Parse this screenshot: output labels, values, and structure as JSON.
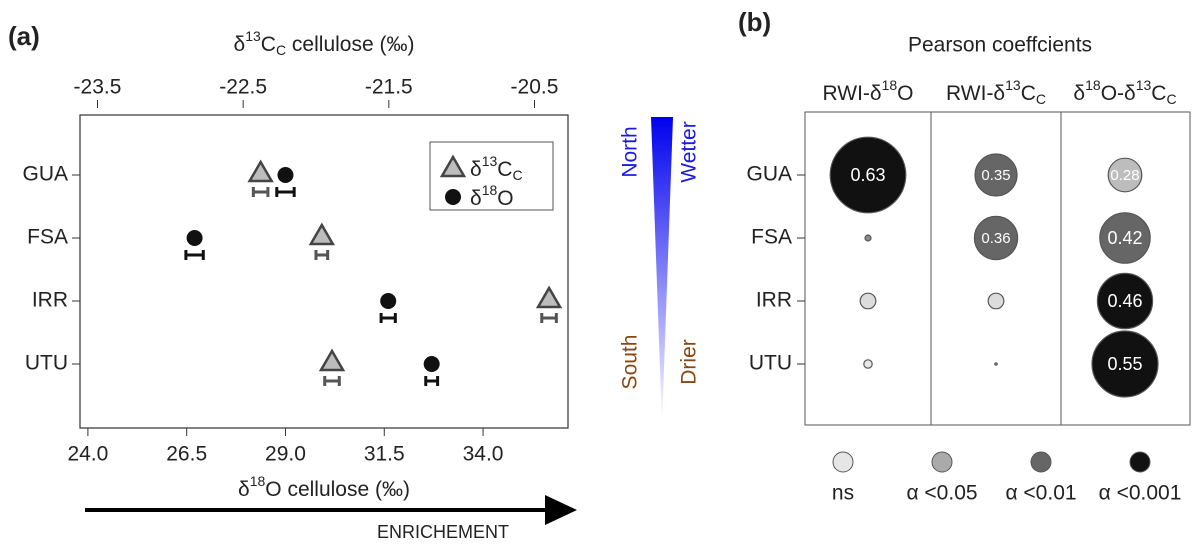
{
  "chart_data": [
    {
      "type": "dot",
      "panel_label": "(a)",
      "x2_label": [
        "δ",
        "13",
        "C",
        "C",
        " cellulose (‰)"
      ],
      "x_label": [
        "δ",
        "18",
        "O cellulose (‰)"
      ],
      "categories": [
        "GUA",
        "FSA",
        "IRR",
        "UTU"
      ],
      "series": [
        {
          "name": [
            "δ",
            "13",
            "C",
            "C"
          ],
          "marker": "triangle",
          "color": "#bdbdbd",
          "axis": "x2",
          "values": [
            -22.38,
            -21.96,
            -20.4,
            -21.89
          ],
          "errors": [
            0.05,
            0.04,
            0.05,
            0.05
          ]
        },
        {
          "name": [
            "δ",
            "18",
            "O"
          ],
          "marker": "circle",
          "color": "#111111",
          "axis": "x",
          "values": [
            29.0,
            26.7,
            31.6,
            32.7
          ],
          "errors": [
            0.22,
            0.22,
            0.18,
            0.15
          ]
        }
      ],
      "xlim": [
        23.8,
        36.15
      ],
      "xticks": [
        {
          "value": 24,
          "label": "24.0"
        },
        26.5,
        {
          "value": 29,
          "label": "29.0"
        },
        31.5,
        {
          "value": 34,
          "label": "34.0"
        }
      ],
      "x2lim": [
        -23.62,
        -20.27
      ],
      "x2ticks": [
        -23.5,
        -22.5,
        -21.5,
        -20.5
      ],
      "annotations": {
        "north": "North",
        "south": "South",
        "wetter": "Wetter",
        "drier": "Drier",
        "arrow": "ENRICHEMENT"
      }
    },
    {
      "type": "bubble",
      "panel_label": "(b)",
      "title": "Pearson coeffcients",
      "categories": [
        "GUA",
        "FSA",
        "IRR",
        "UTU"
      ],
      "series": [
        {
          "name": [
            "RWI-δ",
            "18",
            "O"
          ],
          "values": [
            0.63,
            0.05,
            0.13,
            0.07
          ],
          "value_labels": [
            "0.63",
            null,
            null,
            null
          ],
          "colors": [
            "#111111",
            "#8a8a8a",
            "#dcdcdc",
            "#e8e8e8"
          ]
        },
        {
          "name": [
            "RWI-δ",
            "13",
            "C",
            "C"
          ],
          "values": [
            0.35,
            0.36,
            0.13,
            0.02
          ],
          "value_labels": [
            "0.35",
            "0.36",
            null,
            null
          ],
          "colors": [
            "#666666",
            "#666666",
            "#dcdcdc",
            "#aaaaaa"
          ]
        },
        {
          "name": [
            "δ",
            "18",
            "O-δ",
            "13",
            "C",
            "C"
          ],
          "values": [
            0.28,
            0.42,
            0.46,
            0.55
          ],
          "value_labels": [
            "0.28",
            "0.42",
            "0.46",
            "0.55"
          ],
          "colors": [
            "#bdbdbd",
            "#666666",
            "#111111",
            "#111111"
          ]
        }
      ],
      "legend": [
        {
          "name": "ns",
          "color": "#e6e6e6"
        },
        {
          "name": "α <0.05",
          "color": "#aaaaaa"
        },
        {
          "name": "α <0.01",
          "color": "#666666"
        },
        {
          "name": "α <0.001",
          "color": "#111111"
        }
      ]
    }
  ]
}
